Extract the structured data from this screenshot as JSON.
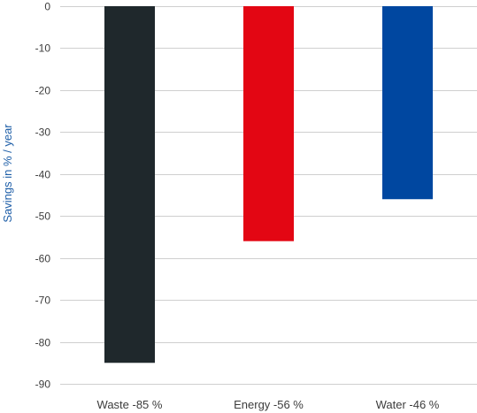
{
  "chart_data": {
    "type": "bar",
    "categories": [
      "Waste -85 %",
      "Energy -56 %",
      "Water -46 %"
    ],
    "values": [
      -85,
      -56,
      -46
    ],
    "colors": [
      "#1f282c",
      "#e30613",
      "#0047a0"
    ],
    "ylabel": "Savings in % / year",
    "xlabel": "",
    "title": "",
    "ylim": [
      -90,
      0
    ],
    "yticks": [
      0,
      -10,
      -20,
      -30,
      -40,
      -50,
      -60,
      -70,
      -80,
      -90
    ],
    "grid": true
  },
  "colors": {
    "axis_label": "#1f5fa8",
    "grid": "#cfcfcf",
    "text": "#3c3c3c"
  }
}
